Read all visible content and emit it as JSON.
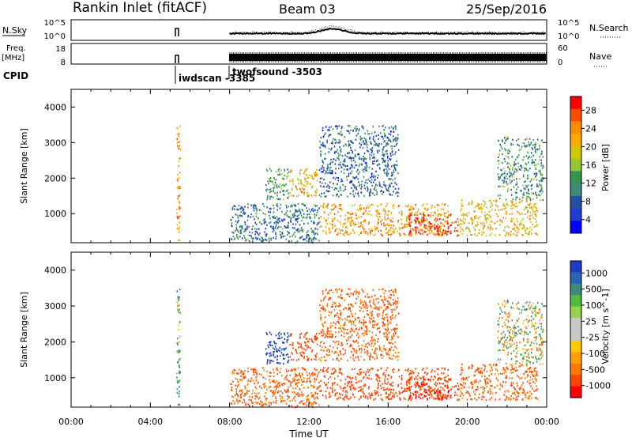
{
  "header": {
    "station": "Rankin Inlet (fitACF)",
    "beam": "Beam 03",
    "date": "25/Sep/2016"
  },
  "strips": {
    "nsky_label": "N.Sky",
    "nsky_ticks": [
      "10^5",
      "10^0"
    ],
    "nsearch_label": "N.Search",
    "nsearch_ticks": [
      "10^5",
      "10^0"
    ],
    "freq_label": "Freq.",
    "freq_unit": "[MHz]",
    "freq_ticks": [
      "18",
      "8"
    ],
    "nave_label": "Nave",
    "nave_ticks": [
      "60",
      "0"
    ],
    "cpid_label": "CPID",
    "cpid_entries": [
      {
        "text": "iwdscan -3385",
        "hour": 5.35
      },
      {
        "text": "twofsound -3503",
        "hour": 8.0
      }
    ]
  },
  "panels": {
    "ylabel": "Slant Range [km]",
    "yticks": [
      "4000",
      "3000",
      "2000",
      "1000"
    ],
    "xticks": [
      "00:00",
      "04:00",
      "08:00",
      "12:00",
      "16:00",
      "20:00",
      "00:00"
    ],
    "xlabel": "Time UT"
  },
  "power_scale": {
    "label": "Power [dB]",
    "ticks": [
      "28",
      "24",
      "20",
      "16",
      "12",
      "8",
      "4"
    ],
    "colors": [
      "#ff0000",
      "#ff4b00",
      "#ff8c00",
      "#ffaa00",
      "#d2c800",
      "#96c832",
      "#329650",
      "#3c8c78",
      "#2850a0",
      "#1e3cd2",
      "#0000ff"
    ]
  },
  "velocity_scale": {
    "label": "Velocity [m s^-1]",
    "ticks": [
      "1000",
      "500",
      "100",
      "25",
      "-25",
      "-100",
      "-500",
      "-1000"
    ],
    "colors": [
      "#1e3cc8",
      "#2864b4",
      "#3c8c78",
      "#50be3c",
      "#96d24b",
      "#c8c8c8",
      "#c8c8c8",
      "#ffc800",
      "#ffa000",
      "#ff7800",
      "#ff4600",
      "#ff0000"
    ]
  },
  "chart_data": {
    "type": "heatmap",
    "x_axis": {
      "label": "Time UT",
      "range_hours": [
        0,
        24
      ]
    },
    "y_axis": {
      "label": "Slant Range [km]",
      "range_km": [
        180,
        4500
      ]
    },
    "panels": [
      "Power [dB]",
      "Velocity [m s^-1]"
    ],
    "scatter_regions": [
      {
        "t": [
          5.3,
          5.5
        ],
        "r": [
          200,
          3500
        ],
        "power_dB": 22,
        "velocity": 50
      },
      {
        "t": [
          9.8,
          11.0
        ],
        "r": [
          1400,
          2300
        ],
        "power_dB": 13,
        "velocity": 500
      },
      {
        "t": [
          11.0,
          12.4
        ],
        "r": [
          1500,
          2300
        ],
        "power_dB": 21,
        "velocity": -200
      },
      {
        "t": [
          8.0,
          12.5
        ],
        "r": [
          200,
          1300
        ],
        "power_dB": 10,
        "velocity": -100
      },
      {
        "t": [
          12.5,
          19.0
        ],
        "r": [
          400,
          1300
        ],
        "power_dB": 22,
        "velocity": -200
      },
      {
        "t": [
          17.0,
          19.5
        ],
        "r": [
          400,
          1000
        ],
        "power_dB": 27,
        "velocity": -300
      },
      {
        "t": [
          19.5,
          23.5
        ],
        "r": [
          400,
          1400
        ],
        "power_dB": 20,
        "velocity": -100
      },
      {
        "t": [
          21.5,
          23.8
        ],
        "r": [
          1400,
          3200
        ],
        "power_dB": 12,
        "velocity": 0
      },
      {
        "t": [
          12.5,
          16.5
        ],
        "r": [
          1500,
          3500
        ],
        "power_dB": 9,
        "velocity": -100
      }
    ]
  }
}
